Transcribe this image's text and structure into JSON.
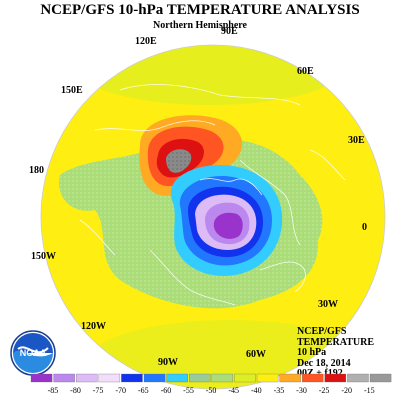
{
  "title": "NCEP/GFS 10-hPa TEMPERATURE ANALYSIS",
  "subtitle": "Northern Hemisphere",
  "longitude_labels": [
    "90E",
    "120E",
    "60E",
    "150E",
    "30E",
    "180",
    "0",
    "150W",
    "30W",
    "120W",
    "60W",
    "90W"
  ],
  "info": {
    "line1": "NCEP/GFS",
    "line2": "TEMPERATURE",
    "line3": "10 hPa",
    "line4": "Dec 18, 2014",
    "line5": "00Z + f192"
  },
  "logo": {
    "text": "NOAA",
    "icon": "noaa-logo"
  },
  "colorbar": {
    "labels": [
      "-85",
      "-80",
      "-75",
      "-70",
      "-65",
      "-60",
      "-55",
      "-50",
      "-45",
      "-40",
      "-35",
      "-30",
      "-25",
      "-20",
      "-15"
    ],
    "colors": [
      "#9933cc",
      "#bb88ee",
      "#ddbbf7",
      "#f2ddfb",
      "#1133ee",
      "#2277ff",
      "#33ccff",
      "#99cc99",
      "#aadd77",
      "#ddee22",
      "#ffee11",
      "#ffaa22",
      "#ff5522",
      "#dd1111",
      "#b0b0b0",
      "#999999"
    ]
  },
  "map_features": {
    "warm_anomaly_center": "Siberia",
    "cold_vortex_center": "Canadian Arctic / Greenland",
    "background_field": "yellow"
  }
}
